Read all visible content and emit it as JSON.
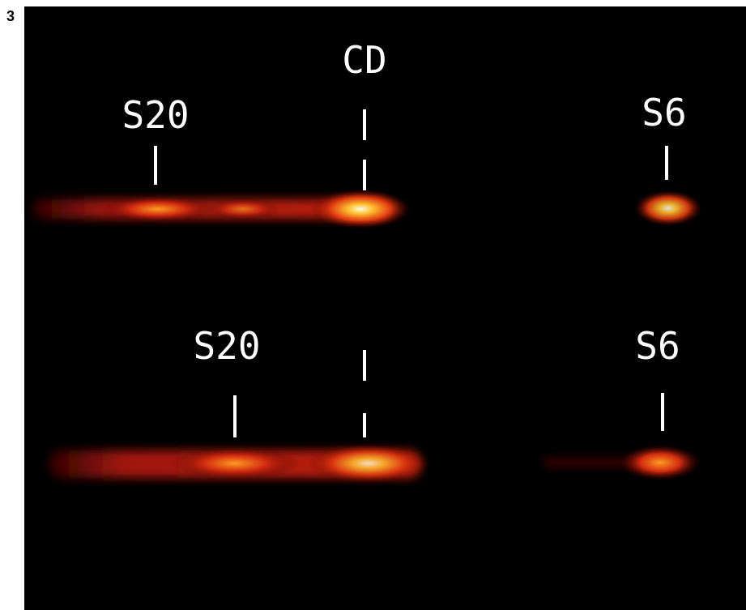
{
  "panel_label": "3",
  "lanes": [
    {
      "labels": [
        "S20",
        "CD",
        "S6"
      ]
    },
    {
      "labels": [
        "S20",
        "S6"
      ]
    }
  ]
}
